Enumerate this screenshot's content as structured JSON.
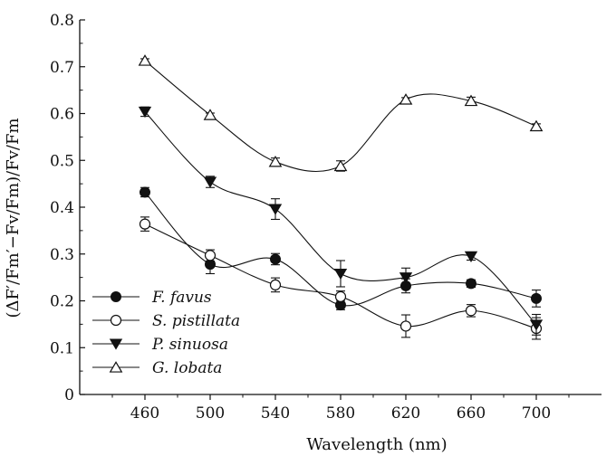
{
  "chart_data": {
    "type": "line",
    "title": "",
    "xlabel": "Wavelength (nm)",
    "ylabel": "(ΔF′/Fm′−Fv/Fm)/Fv/Fm",
    "xlim": [
      420,
      740
    ],
    "ylim": [
      0,
      0.8
    ],
    "x_ticks": [
      460,
      500,
      540,
      580,
      620,
      660,
      700
    ],
    "x_tick_labels": [
      "460",
      "500",
      "540",
      "580",
      "620",
      "660",
      "700"
    ],
    "y_ticks": [
      0,
      0.1,
      0.2,
      0.3,
      0.4,
      0.5,
      0.6,
      0.7,
      0.8
    ],
    "y_tick_labels": [
      "0",
      "0.1",
      "0.2",
      "0.3",
      "0.4",
      "0.5",
      "0.6",
      "0.7",
      "0.8"
    ],
    "grid": false,
    "legend_position": "bottom-left",
    "x": [
      460,
      500,
      540,
      580,
      620,
      660,
      700
    ],
    "series": [
      {
        "name": "F. favus",
        "marker": "filled-circle",
        "values": [
          0.432,
          0.278,
          0.289,
          0.191,
          0.232,
          0.237,
          0.205
        ],
        "errors": [
          0.01,
          0.02,
          0.012,
          0.01,
          0.015,
          0.008,
          0.018
        ]
      },
      {
        "name": "S. pistillata",
        "marker": "open-circle",
        "values": [
          0.364,
          0.297,
          0.234,
          0.209,
          0.146,
          0.179,
          0.141
        ],
        "errors": [
          0.015,
          0.012,
          0.015,
          0.012,
          0.024,
          0.013,
          0.023
        ]
      },
      {
        "name": "P. sinuosa",
        "marker": "filled-triangle-down",
        "values": [
          0.604,
          0.454,
          0.396,
          0.258,
          0.25,
          0.295,
          0.149
        ],
        "errors": [
          0.01,
          0.012,
          0.022,
          0.028,
          0.02,
          0.008,
          0.022
        ]
      },
      {
        "name": "G. lobata",
        "marker": "open-triangle-up",
        "values": [
          0.713,
          0.597,
          0.497,
          0.488,
          0.63,
          0.627,
          0.573
        ],
        "errors": [
          0.004,
          0.004,
          0.008,
          0.011,
          0.004,
          0.008,
          0.005
        ]
      }
    ]
  }
}
